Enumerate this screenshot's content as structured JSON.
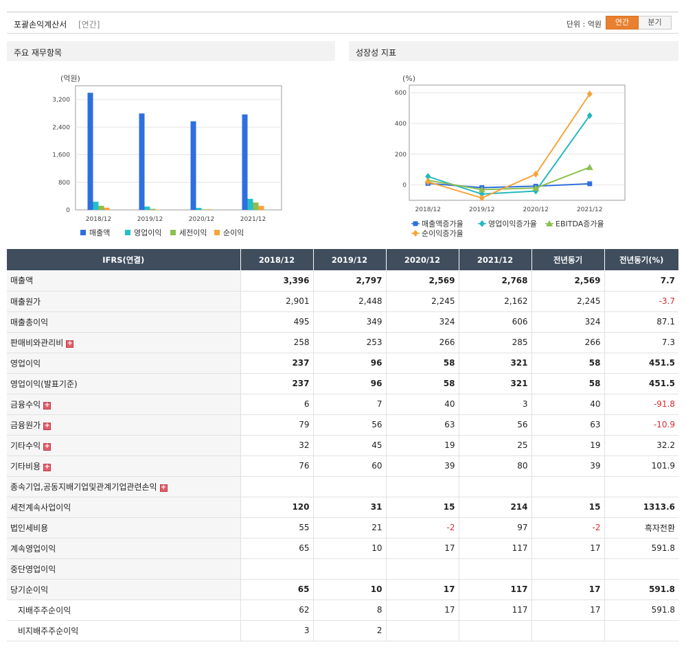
{
  "header": {
    "title": "포괄손익계산서",
    "period": "[연간]",
    "unit": "단위 : 억원",
    "toggle_annual": "연간",
    "toggle_quarter": "분기"
  },
  "panels": {
    "left_title": "주요 재무항목",
    "right_title": "성장성 지표"
  },
  "chart_data": [
    {
      "type": "bar",
      "unit_label": "(억원)",
      "categories": [
        "2018/12",
        "2019/12",
        "2020/12",
        "2021/12"
      ],
      "ylim": [
        0,
        3600
      ],
      "yticks": [
        0,
        800,
        1600,
        2400,
        3200
      ],
      "ytick_labels": [
        "0",
        "800",
        "1,600",
        "2,400",
        "3,200"
      ],
      "grid": true,
      "legend_position": "bottom",
      "series": [
        {
          "name": "매출액",
          "color": "#2e6fdf",
          "values": [
            3396,
            2797,
            2569,
            2768
          ]
        },
        {
          "name": "영업이익",
          "color": "#23c0c7",
          "values": [
            237,
            96,
            58,
            321
          ]
        },
        {
          "name": "세전이익",
          "color": "#8cbf4e",
          "values": [
            120,
            31,
            15,
            214
          ]
        },
        {
          "name": "순이익",
          "color": "#f5a53a",
          "values": [
            65,
            10,
            17,
            117
          ]
        }
      ]
    },
    {
      "type": "line",
      "unit_label": "(%)",
      "categories": [
        "2018/12",
        "2019/12",
        "2020/12",
        "2021/12"
      ],
      "ylim": [
        -100,
        650
      ],
      "yticks": [
        0,
        200,
        400,
        600
      ],
      "ytick_labels": [
        "0",
        "200",
        "400",
        "600"
      ],
      "grid": true,
      "legend_position": "bottom",
      "series": [
        {
          "name": "매출액증가율",
          "color": "#2e6fdf",
          "marker": "square",
          "values": [
            10,
            -17.6,
            -8.2,
            7.7
          ]
        },
        {
          "name": "영업이익증가율",
          "color": "#23b7bf",
          "marker": "diamond",
          "values": [
            55,
            -59.5,
            -39.6,
            451.5
          ]
        },
        {
          "name": "EBITDA증가율",
          "color": "#8cbf4e",
          "marker": "triangle",
          "values": [
            30,
            -30,
            -20,
            115
          ]
        },
        {
          "name": "순이익증가율",
          "color": "#f5a53a",
          "marker": "diamond",
          "values": [
            20,
            -84.6,
            70,
            591.8
          ]
        }
      ]
    }
  ],
  "table": {
    "headers": [
      "IFRS(연결)",
      "2018/12",
      "2019/12",
      "2020/12",
      "2021/12",
      "전년동기",
      "전년동기(%)"
    ],
    "rows": [
      {
        "label": "매출액",
        "bold": true,
        "expand": false,
        "sub": false,
        "cells": [
          "3,396",
          "2,797",
          "2,569",
          "2,768",
          "2,569",
          "7.7"
        ]
      },
      {
        "label": "매출원가",
        "bold": false,
        "expand": false,
        "sub": false,
        "cells": [
          "2,901",
          "2,448",
          "2,245",
          "2,162",
          "2,245",
          "-3.7"
        ]
      },
      {
        "label": "매출총이익",
        "bold": false,
        "expand": false,
        "sub": false,
        "cells": [
          "495",
          "349",
          "324",
          "606",
          "324",
          "87.1"
        ]
      },
      {
        "label": "판매비와관리비",
        "bold": false,
        "expand": true,
        "sub": false,
        "cells": [
          "258",
          "253",
          "266",
          "285",
          "266",
          "7.3"
        ]
      },
      {
        "label": "영업이익",
        "bold": true,
        "expand": false,
        "sub": false,
        "cells": [
          "237",
          "96",
          "58",
          "321",
          "58",
          "451.5"
        ]
      },
      {
        "label": "영업이익(발표기준)",
        "bold": true,
        "expand": false,
        "sub": false,
        "cells": [
          "237",
          "96",
          "58",
          "321",
          "58",
          "451.5"
        ]
      },
      {
        "label": "금융수익",
        "bold": false,
        "expand": true,
        "sub": false,
        "cells": [
          "6",
          "7",
          "40",
          "3",
          "40",
          "-91.8"
        ]
      },
      {
        "label": "금융원가",
        "bold": false,
        "expand": true,
        "sub": false,
        "cells": [
          "79",
          "56",
          "63",
          "56",
          "63",
          "-10.9"
        ]
      },
      {
        "label": "기타수익",
        "bold": false,
        "expand": true,
        "sub": false,
        "cells": [
          "32",
          "45",
          "19",
          "25",
          "19",
          "32.2"
        ]
      },
      {
        "label": "기타비용",
        "bold": false,
        "expand": true,
        "sub": false,
        "cells": [
          "76",
          "60",
          "39",
          "80",
          "39",
          "101.9"
        ]
      },
      {
        "label": "종속기업,공동지배기업및관계기업관련손익",
        "bold": false,
        "expand": true,
        "sub": false,
        "cells": [
          "",
          "",
          "",
          "",
          "",
          ""
        ]
      },
      {
        "label": "세전계속사업이익",
        "bold": true,
        "expand": false,
        "sub": false,
        "cells": [
          "120",
          "31",
          "15",
          "214",
          "15",
          "1313.6"
        ]
      },
      {
        "label": "법인세비용",
        "bold": false,
        "expand": false,
        "sub": false,
        "cells": [
          "55",
          "21",
          "-2",
          "97",
          "-2",
          "흑자전환"
        ]
      },
      {
        "label": "계속영업이익",
        "bold": false,
        "expand": false,
        "sub": false,
        "cells": [
          "65",
          "10",
          "17",
          "117",
          "17",
          "591.8"
        ]
      },
      {
        "label": "중단영업이익",
        "bold": false,
        "expand": false,
        "sub": false,
        "cells": [
          "",
          "",
          "",
          "",
          "",
          ""
        ]
      },
      {
        "label": "당기순이익",
        "bold": true,
        "expand": false,
        "sub": false,
        "cells": [
          "65",
          "10",
          "17",
          "117",
          "17",
          "591.8"
        ]
      },
      {
        "label": "지배주주순이익",
        "bold": false,
        "expand": false,
        "sub": true,
        "cells": [
          "62",
          "8",
          "17",
          "117",
          "17",
          "591.8"
        ]
      },
      {
        "label": "비지배주주순이익",
        "bold": false,
        "expand": false,
        "sub": true,
        "cells": [
          "3",
          "2",
          "",
          "",
          "",
          ""
        ]
      }
    ]
  }
}
